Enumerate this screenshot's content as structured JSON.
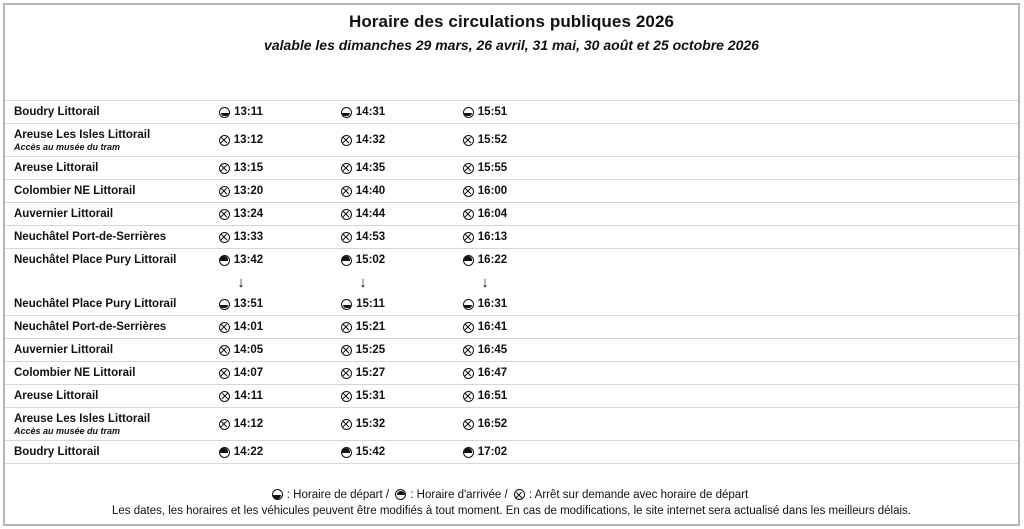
{
  "document": {
    "title": "Horaire des circulations publiques 2026",
    "subtitle": "valable les dimanches 29 mars, 26 avril, 31 mai, 30 août et 25 octobre 2026"
  },
  "glyphs": {
    "arrow_down": "↓"
  },
  "timetable": {
    "columns": 3,
    "rows": [
      {
        "station": "Boudry Littorail",
        "note": "",
        "icon": "departure-icon",
        "times": [
          "13:11",
          "14:31",
          "15:51"
        ]
      },
      {
        "station": "Areuse Les Isles Littorail",
        "note": "Accès au musée du tram",
        "icon": "request-stop-icon",
        "times": [
          "13:12",
          "14:32",
          "15:52"
        ]
      },
      {
        "station": "Areuse Littorail",
        "note": "",
        "icon": "request-stop-icon",
        "times": [
          "13:15",
          "14:35",
          "15:55"
        ]
      },
      {
        "station": "Colombier NE Littorail",
        "note": "",
        "icon": "request-stop-icon",
        "times": [
          "13:20",
          "14:40",
          "16:00"
        ]
      },
      {
        "station": "Auvernier Littorail",
        "note": "",
        "icon": "request-stop-icon",
        "times": [
          "13:24",
          "14:44",
          "16:04"
        ]
      },
      {
        "station": "Neuchâtel Port-de-Serrières",
        "note": "",
        "icon": "request-stop-icon",
        "times": [
          "13:33",
          "14:53",
          "16:13"
        ]
      },
      {
        "station": "Neuchâtel Place Pury Littorail",
        "note": "",
        "icon": "arrival-icon",
        "times": [
          "13:42",
          "15:02",
          "16:22"
        ]
      },
      {
        "station": "",
        "note": "",
        "type": "continuation",
        "merge_above": true,
        "times": [
          "",
          "",
          ""
        ]
      },
      {
        "station": "Neuchâtel Place Pury Littorail",
        "note": "",
        "icon": "departure-icon",
        "merge_above": true,
        "times": [
          "13:51",
          "15:11",
          "16:31"
        ]
      },
      {
        "station": "Neuchâtel Port-de-Serrières",
        "note": "",
        "icon": "request-stop-icon",
        "times": [
          "14:01",
          "15:21",
          "16:41"
        ]
      },
      {
        "station": "Auvernier Littorail",
        "note": "",
        "icon": "request-stop-icon",
        "times": [
          "14:05",
          "15:25",
          "16:45"
        ]
      },
      {
        "station": "Colombier NE Littorail",
        "note": "",
        "icon": "request-stop-icon",
        "times": [
          "14:07",
          "15:27",
          "16:47"
        ]
      },
      {
        "station": "Areuse Littorail",
        "note": "",
        "icon": "request-stop-icon",
        "times": [
          "14:11",
          "15:31",
          "16:51"
        ]
      },
      {
        "station": "Areuse Les Isles Littorail",
        "note": "Accès au musée du tram",
        "icon": "request-stop-icon",
        "times": [
          "14:12",
          "15:32",
          "16:52"
        ]
      },
      {
        "station": "Boudry Littorail",
        "note": "",
        "icon": "arrival-icon",
        "times": [
          "14:22",
          "15:42",
          "17:02"
        ]
      }
    ]
  },
  "footer": {
    "legend": [
      {
        "icon": "departure-icon",
        "text": ": Horaire de départ /"
      },
      {
        "icon": "arrival-icon",
        "text": ": Horaire d'arrivée /"
      },
      {
        "icon": "request-stop-icon",
        "text": ": Arrêt sur demande avec horaire de départ"
      }
    ],
    "note": "Les dates, les horaires et les véhicules peuvent être modifiés à tout moment. En cas de modifications, le site internet sera actualisé dans les meilleurs délais."
  }
}
